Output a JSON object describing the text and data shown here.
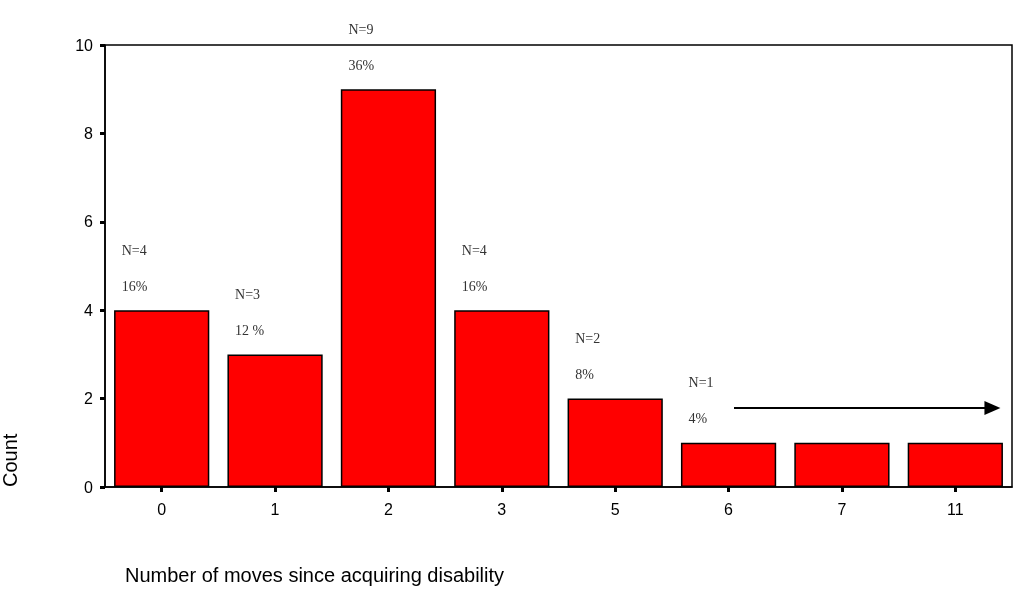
{
  "chart_data": {
    "type": "bar",
    "xlabel": "Number of moves since acquiring disability",
    "ylabel": "Count",
    "categories": [
      "0",
      "1",
      "2",
      "3",
      "5",
      "6",
      "7",
      "11"
    ],
    "values": [
      4,
      3,
      9,
      4,
      2,
      1,
      1,
      1
    ],
    "color": "#ff0000",
    "value_labels": [
      "N=4\n16%",
      "N=3\n12 %",
      "N=9\n36%",
      "N=4\n16%",
      "N=2\n8%",
      "N=1\n4%",
      null,
      null
    ],
    "ylim": [
      0,
      10
    ],
    "yticks": [
      0,
      2,
      4,
      6,
      8,
      10
    ],
    "grid": false
  }
}
